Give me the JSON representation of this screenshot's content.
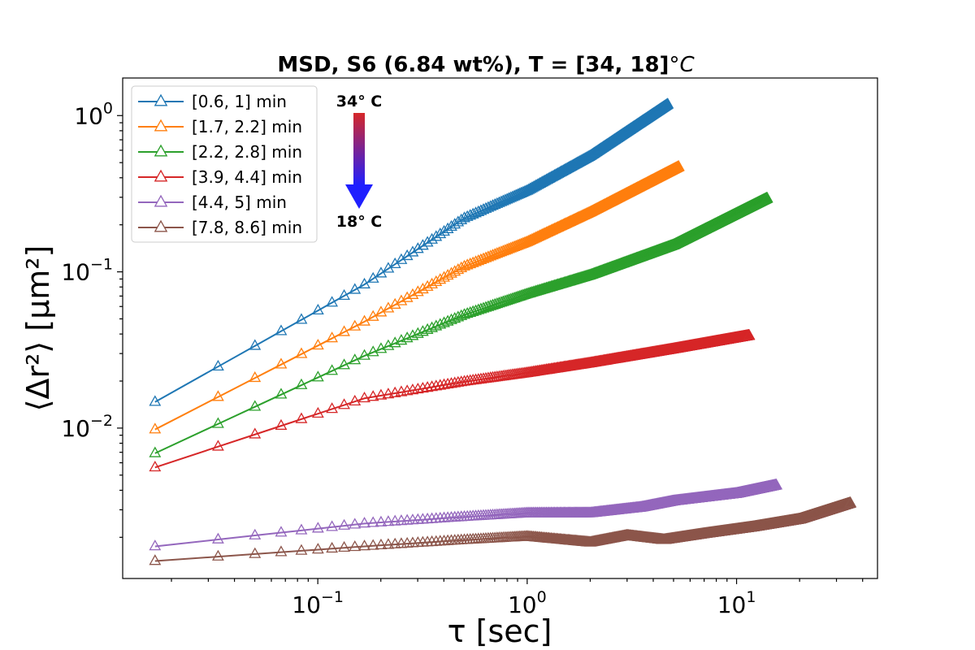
{
  "chart_data": {
    "type": "scatter",
    "title": "MSD, S6 (6.84 wt%), T = [34, 18]",
    "title_unit": "°C",
    "xlabel": "τ [sec]",
    "ylabel": "⟨Δr²⟩ [μm²]",
    "xscale": "log",
    "yscale": "log",
    "xlim": [
      0.0117,
      47.1
    ],
    "ylim": [
      0.00109,
      1.74
    ],
    "grid": false,
    "legend_position": "top-left",
    "marker": "triangle-open",
    "x_ticks": [
      {
        "value": 0.1,
        "mantissa": "10",
        "exponent": "−1"
      },
      {
        "value": 1,
        "mantissa": "10",
        "exponent": "0"
      },
      {
        "value": 10,
        "mantissa": "10",
        "exponent": "1"
      }
    ],
    "y_ticks": [
      {
        "value": 0.01,
        "mantissa": "10",
        "exponent": "−2"
      },
      {
        "value": 0.1,
        "mantissa": "10",
        "exponent": "−1"
      },
      {
        "value": 1,
        "mantissa": "10",
        "exponent": "0"
      }
    ],
    "series": [
      {
        "name": "[0.6, 1] min",
        "color": "#1f77b4",
        "x_end": 4.7,
        "points": [
          [
            0.0167,
            0.0147
          ],
          [
            0.167,
            0.083
          ],
          [
            0.5,
            0.22
          ],
          [
            1,
            0.33
          ],
          [
            2,
            0.55
          ],
          [
            4.7,
            1.18
          ]
        ]
      },
      {
        "name": "[1.7, 2.2] min",
        "color": "#ff7f0e",
        "x_end": 5.3,
        "points": [
          [
            0.0167,
            0.0098
          ],
          [
            0.167,
            0.048
          ],
          [
            0.5,
            0.108
          ],
          [
            1,
            0.155
          ],
          [
            2,
            0.24
          ],
          [
            5.3,
            0.47
          ]
        ]
      },
      {
        "name": "[2.2, 2.8] min",
        "color": "#2ca02c",
        "x_end": 14,
        "points": [
          [
            0.0167,
            0.0069
          ],
          [
            0.167,
            0.029
          ],
          [
            0.5,
            0.053
          ],
          [
            1,
            0.072
          ],
          [
            2,
            0.095
          ],
          [
            5,
            0.148
          ],
          [
            14,
            0.295
          ]
        ]
      },
      {
        "name": "[3.9, 4.4] min",
        "color": "#d62728",
        "x_end": 11.5,
        "points": [
          [
            0.0167,
            0.0056
          ],
          [
            0.167,
            0.0155
          ],
          [
            0.5,
            0.0198
          ],
          [
            1,
            0.0225
          ],
          [
            2,
            0.026
          ],
          [
            5,
            0.032
          ],
          [
            11.5,
            0.039
          ]
        ]
      },
      {
        "name": "[4.4, 5] min",
        "color": "#9467bd",
        "x_end": 15.5,
        "points": [
          [
            0.0167,
            0.00175
          ],
          [
            0.167,
            0.00245
          ],
          [
            0.5,
            0.0027
          ],
          [
            1,
            0.00285
          ],
          [
            2,
            0.00285
          ],
          [
            3.5,
            0.0031
          ],
          [
            5,
            0.0034
          ],
          [
            10,
            0.0038
          ],
          [
            15.5,
            0.0043
          ]
        ]
      },
      {
        "name": "[7.8, 8.6] min",
        "color": "#8c564b",
        "x_end": 35,
        "points": [
          [
            0.0167,
            0.00141
          ],
          [
            0.167,
            0.00175
          ],
          [
            0.5,
            0.00192
          ],
          [
            1,
            0.00202
          ],
          [
            2,
            0.00185
          ],
          [
            3,
            0.00205
          ],
          [
            4.5,
            0.00192
          ],
          [
            7,
            0.0021
          ],
          [
            12,
            0.00232
          ],
          [
            20,
            0.0026
          ],
          [
            35,
            0.0033
          ]
        ]
      }
    ],
    "temperature_arrow": {
      "top_label": "34° C",
      "bottom_label": "18° C",
      "top_color": "#d62728",
      "bottom_color": "#1f1fff"
    }
  }
}
